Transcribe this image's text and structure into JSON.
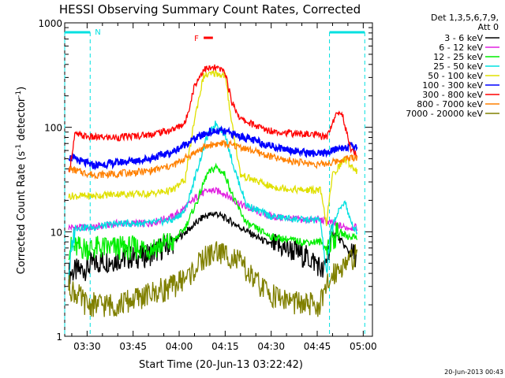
{
  "chart_data": {
    "type": "line",
    "title": "HESSI Observing Summary Count Rates, Corrected",
    "xlabel": "Start Time (20-Jun-13 03:22:42)",
    "ylabel_parts": [
      "Corrected Count Rate (s",
      "-1",
      " detector",
      "-1",
      ")"
    ],
    "y_scale": "log",
    "ylim": [
      1,
      1000
    ],
    "xlim": [
      "03:22:42",
      "05:03:00"
    ],
    "x_ticks": [
      "03:30",
      "03:45",
      "04:00",
      "04:15",
      "04:30",
      "04:45",
      "05:00"
    ],
    "y_ticks": [
      "1",
      "10",
      "100",
      "1000"
    ],
    "grid": false,
    "legend_position": "right",
    "legend_header": [
      "Det 1,3,5,6,7,9,",
      "Att 0"
    ],
    "series": [
      {
        "name": "3 - 6 keV",
        "color": "#000000",
        "points": [
          [
            "03:24",
            4
          ],
          [
            "03:30",
            4.5
          ],
          [
            "03:32",
            5
          ],
          [
            "03:40",
            5.5
          ],
          [
            "03:50",
            6
          ],
          [
            "03:58",
            8
          ],
          [
            "04:04",
            11
          ],
          [
            "04:08",
            14
          ],
          [
            "04:12",
            15
          ],
          [
            "04:16",
            13
          ],
          [
            "04:20",
            11
          ],
          [
            "04:25",
            9
          ],
          [
            "04:30",
            7.5
          ],
          [
            "04:38",
            6.5
          ],
          [
            "04:45",
            5
          ],
          [
            "04:47",
            4
          ],
          [
            "04:50",
            10
          ],
          [
            "04:53",
            8
          ],
          [
            "04:56",
            6
          ],
          [
            "04:58",
            6
          ]
        ]
      },
      {
        "name": "6 - 12 keV",
        "color": "#e020e0",
        "points": [
          [
            "03:24",
            11
          ],
          [
            "03:32",
            11
          ],
          [
            "03:40",
            12
          ],
          [
            "03:50",
            12
          ],
          [
            "03:58",
            14
          ],
          [
            "04:02",
            17
          ],
          [
            "04:06",
            22
          ],
          [
            "04:10",
            25
          ],
          [
            "04:14",
            24
          ],
          [
            "04:18",
            20
          ],
          [
            "04:22",
            17
          ],
          [
            "04:30",
            14
          ],
          [
            "04:40",
            13
          ],
          [
            "04:46",
            13
          ],
          [
            "04:50",
            12
          ],
          [
            "04:54",
            11
          ],
          [
            "04:58",
            11
          ]
        ]
      },
      {
        "name": "12 - 25 keV",
        "color": "#00ee00",
        "points": [
          [
            "03:24",
            7
          ],
          [
            "03:32",
            7
          ],
          [
            "03:40",
            7
          ],
          [
            "03:50",
            7
          ],
          [
            "03:58",
            8
          ],
          [
            "04:02",
            11
          ],
          [
            "04:06",
            20
          ],
          [
            "04:09",
            35
          ],
          [
            "04:12",
            42
          ],
          [
            "04:15",
            35
          ],
          [
            "04:18",
            20
          ],
          [
            "04:22",
            12
          ],
          [
            "04:30",
            9
          ],
          [
            "04:40",
            8
          ],
          [
            "04:46",
            8
          ],
          [
            "04:48",
            7
          ],
          [
            "04:52",
            10
          ],
          [
            "04:55",
            9
          ],
          [
            "04:58",
            9
          ]
        ]
      },
      {
        "name": "25 - 50 keV",
        "color": "#00e0e0",
        "points": [
          [
            "03:24",
            4
          ],
          [
            "03:26",
            11
          ],
          [
            "03:32",
            11
          ],
          [
            "03:40",
            12
          ],
          [
            "03:50",
            12
          ],
          [
            "03:58",
            13
          ],
          [
            "04:02",
            16
          ],
          [
            "04:06",
            40
          ],
          [
            "04:09",
            80
          ],
          [
            "04:12",
            110
          ],
          [
            "04:15",
            85
          ],
          [
            "04:18",
            40
          ],
          [
            "04:22",
            18
          ],
          [
            "04:30",
            14
          ],
          [
            "04:40",
            13
          ],
          [
            "04:46",
            13
          ],
          [
            "04:48",
            4
          ],
          [
            "04:50",
            12
          ],
          [
            "04:54",
            20
          ],
          [
            "04:56",
            12
          ],
          [
            "04:58",
            10
          ]
        ]
      },
      {
        "name": "50 - 100 keV",
        "color": "#e0e000",
        "points": [
          [
            "03:24",
            22
          ],
          [
            "03:32",
            22
          ],
          [
            "03:40",
            23
          ],
          [
            "03:50",
            23
          ],
          [
            "03:58",
            25
          ],
          [
            "04:02",
            32
          ],
          [
            "04:05",
            120
          ],
          [
            "04:08",
            310
          ],
          [
            "04:12",
            330
          ],
          [
            "04:15",
            310
          ],
          [
            "04:17",
            120
          ],
          [
            "04:20",
            35
          ],
          [
            "04:30",
            27
          ],
          [
            "04:40",
            25
          ],
          [
            "04:46",
            25
          ],
          [
            "04:48",
            12
          ],
          [
            "04:50",
            35
          ],
          [
            "04:54",
            50
          ],
          [
            "04:58",
            38
          ]
        ]
      },
      {
        "name": "100 - 300 keV",
        "color": "#0000ff",
        "points": [
          [
            "03:24",
            52
          ],
          [
            "03:32",
            43
          ],
          [
            "03:40",
            46
          ],
          [
            "03:50",
            50
          ],
          [
            "03:58",
            58
          ],
          [
            "04:04",
            75
          ],
          [
            "04:10",
            90
          ],
          [
            "04:14",
            92
          ],
          [
            "04:20",
            82
          ],
          [
            "04:26",
            72
          ],
          [
            "04:32",
            64
          ],
          [
            "04:40",
            58
          ],
          [
            "04:46",
            55
          ],
          [
            "04:50",
            60
          ],
          [
            "04:54",
            65
          ],
          [
            "04:58",
            66
          ]
        ]
      },
      {
        "name": "300 - 800 keV",
        "color": "#ff0000",
        "points": [
          [
            "03:24",
            35
          ],
          [
            "03:26",
            85
          ],
          [
            "03:32",
            80
          ],
          [
            "03:40",
            80
          ],
          [
            "03:50",
            85
          ],
          [
            "03:58",
            95
          ],
          [
            "04:02",
            110
          ],
          [
            "04:05",
            250
          ],
          [
            "04:08",
            360
          ],
          [
            "04:12",
            370
          ],
          [
            "04:15",
            340
          ],
          [
            "04:17",
            180
          ],
          [
            "04:20",
            120
          ],
          [
            "04:28",
            95
          ],
          [
            "04:36",
            88
          ],
          [
            "04:44",
            85
          ],
          [
            "04:48",
            80
          ],
          [
            "04:51",
            130
          ],
          [
            "04:53",
            140
          ],
          [
            "04:56",
            60
          ],
          [
            "04:58",
            55
          ]
        ]
      },
      {
        "name": "800 - 7000 keV",
        "color": "#ff8000",
        "points": [
          [
            "03:24",
            40
          ],
          [
            "03:32",
            35
          ],
          [
            "03:40",
            36
          ],
          [
            "03:50",
            38
          ],
          [
            "03:58",
            43
          ],
          [
            "04:04",
            55
          ],
          [
            "04:10",
            68
          ],
          [
            "04:14",
            70
          ],
          [
            "04:20",
            65
          ],
          [
            "04:26",
            57
          ],
          [
            "04:32",
            50
          ],
          [
            "04:40",
            46
          ],
          [
            "04:46",
            44
          ],
          [
            "04:50",
            46
          ],
          [
            "04:54",
            50
          ],
          [
            "04:58",
            52
          ]
        ]
      },
      {
        "name": "7000 - 20000 keV",
        "color": "#808000",
        "points": [
          [
            "03:24",
            3
          ],
          [
            "03:30",
            2
          ],
          [
            "03:40",
            2
          ],
          [
            "03:50",
            2.5
          ],
          [
            "03:58",
            3
          ],
          [
            "04:04",
            4
          ],
          [
            "04:08",
            5.5
          ],
          [
            "04:12",
            6.5
          ],
          [
            "04:16",
            6
          ],
          [
            "04:20",
            5
          ],
          [
            "04:24",
            3.5
          ],
          [
            "04:30",
            2.5
          ],
          [
            "04:40",
            2
          ],
          [
            "04:46",
            2
          ],
          [
            "04:50",
            4
          ],
          [
            "04:54",
            5
          ],
          [
            "04:58",
            6
          ]
        ]
      }
    ],
    "annotations": {
      "n_label": "N",
      "n_intervals": [
        [
          "03:22:42",
          "03:31:00"
        ],
        [
          "04:49:00",
          "05:00:30"
        ]
      ],
      "flare_label": "F",
      "flare_interval": [
        "04:08",
        "04:11"
      ]
    },
    "footer_date": "20-Jun-2013 00:43"
  }
}
